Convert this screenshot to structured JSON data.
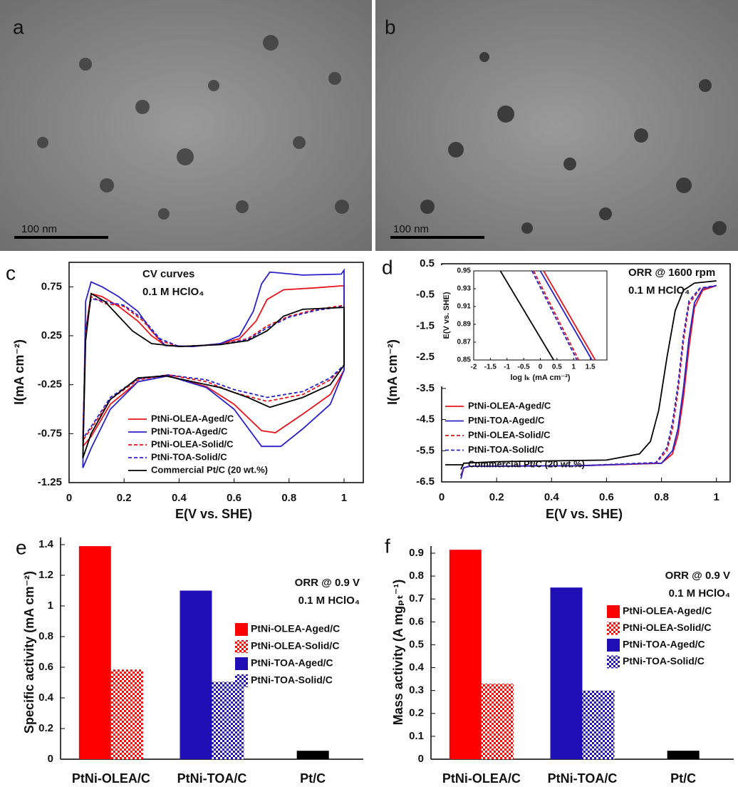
{
  "images": [
    {
      "panel": "a",
      "scale_bar": "100 nm"
    },
    {
      "panel": "b",
      "scale_bar": "100 nm"
    }
  ],
  "chart_data": [
    {
      "type": "line",
      "panel": "c",
      "xlabel": "E(V vs. SHE)",
      "ylabel": "I(mA cm⁻²)",
      "annotations": [
        "CV curves",
        "0.1 M HClO₄"
      ],
      "xlim": [
        0,
        1.07
      ],
      "ylim": [
        -1.25,
        1
      ],
      "xticks": [
        0,
        0.2,
        0.4,
        0.6,
        0.8,
        1
      ],
      "yticks": [
        0.75,
        0.25,
        -0.25,
        -0.75,
        -1.25
      ],
      "frame": true,
      "series": [
        {
          "name": "PtNi-OLEA-Aged/C",
          "color": "#e8141b",
          "dashed": false,
          "x": [
            0.05,
            0.06,
            0.08,
            0.12,
            0.18,
            0.25,
            0.3,
            0.35,
            0.45,
            0.55,
            0.62,
            0.68,
            0.72,
            0.78,
            0.9,
            0.99,
            1.0,
            1.0,
            0.95,
            0.85,
            0.75,
            0.7,
            0.6,
            0.5,
            0.36,
            0.25,
            0.15,
            0.08,
            0.05
          ],
          "values": [
            -0.88,
            0.3,
            0.68,
            0.65,
            0.55,
            0.4,
            0.25,
            0.15,
            0.14,
            0.17,
            0.22,
            0.4,
            0.62,
            0.72,
            0.74,
            0.76,
            0.76,
            -0.1,
            -0.35,
            -0.55,
            -0.74,
            -0.72,
            -0.45,
            -0.27,
            -0.16,
            -0.22,
            -0.45,
            -0.78,
            -0.88
          ]
        },
        {
          "name": "PtNi-TOA-Aged/C",
          "color": "#2a22c8",
          "dashed": false,
          "x": [
            0.05,
            0.06,
            0.08,
            0.12,
            0.18,
            0.25,
            0.3,
            0.35,
            0.45,
            0.55,
            0.62,
            0.67,
            0.7,
            0.73,
            0.85,
            0.99,
            1.0,
            1.0,
            0.95,
            0.85,
            0.77,
            0.7,
            0.6,
            0.5,
            0.36,
            0.25,
            0.15,
            0.08,
            0.05
          ],
          "values": [
            -1.1,
            0.6,
            0.8,
            0.75,
            0.65,
            0.5,
            0.3,
            0.15,
            0.14,
            0.17,
            0.25,
            0.5,
            0.78,
            0.9,
            0.87,
            0.88,
            0.92,
            -0.1,
            -0.45,
            -0.7,
            -0.88,
            -0.88,
            -0.5,
            -0.28,
            -0.16,
            -0.22,
            -0.5,
            -0.9,
            -1.1
          ]
        },
        {
          "name": "PtNi-OLEA-Solid/C",
          "color": "#e8141b",
          "dashed": true,
          "x": [
            0.05,
            0.06,
            0.08,
            0.13,
            0.2,
            0.27,
            0.33,
            0.4,
            0.55,
            0.65,
            0.72,
            0.8,
            0.9,
            1.0,
            1.0,
            0.95,
            0.85,
            0.72,
            0.6,
            0.5,
            0.36,
            0.25,
            0.15,
            0.08,
            0.05
          ],
          "values": [
            -0.82,
            0.3,
            0.65,
            0.58,
            0.55,
            0.4,
            0.2,
            0.14,
            0.16,
            0.22,
            0.35,
            0.45,
            0.52,
            0.56,
            -0.05,
            -0.2,
            -0.35,
            -0.42,
            -0.33,
            -0.22,
            -0.15,
            -0.2,
            -0.4,
            -0.7,
            -0.82
          ]
        },
        {
          "name": "PtNi-TOA-Solid/C",
          "color": "#2a22c8",
          "dashed": true,
          "x": [
            0.05,
            0.06,
            0.08,
            0.13,
            0.2,
            0.27,
            0.33,
            0.4,
            0.55,
            0.65,
            0.72,
            0.8,
            0.9,
            1.0,
            1.0,
            0.95,
            0.85,
            0.72,
            0.6,
            0.5,
            0.36,
            0.25,
            0.15,
            0.08,
            0.05
          ],
          "values": [
            -0.8,
            0.3,
            0.63,
            0.6,
            0.56,
            0.42,
            0.22,
            0.14,
            0.16,
            0.21,
            0.33,
            0.44,
            0.51,
            0.55,
            -0.05,
            -0.18,
            -0.32,
            -0.38,
            -0.3,
            -0.2,
            -0.15,
            -0.19,
            -0.38,
            -0.68,
            -0.8
          ]
        },
        {
          "name": "Commercial Pt/C (20 wt.%)",
          "color": "#000000",
          "dashed": false,
          "x": [
            0.05,
            0.06,
            0.08,
            0.1,
            0.13,
            0.18,
            0.23,
            0.3,
            0.4,
            0.55,
            0.65,
            0.72,
            0.78,
            0.85,
            1.0,
            1.0,
            0.95,
            0.85,
            0.73,
            0.65,
            0.55,
            0.45,
            0.35,
            0.25,
            0.15,
            0.08,
            0.05
          ],
          "values": [
            -1.0,
            0.2,
            0.68,
            0.65,
            0.6,
            0.45,
            0.3,
            0.17,
            0.14,
            0.16,
            0.2,
            0.3,
            0.45,
            0.52,
            0.54,
            -0.05,
            -0.25,
            -0.38,
            -0.48,
            -0.38,
            -0.28,
            -0.22,
            -0.16,
            -0.18,
            -0.4,
            -0.75,
            -1.0
          ]
        }
      ]
    },
    {
      "type": "line",
      "panel": "d",
      "xlabel": "E(V vs. SHE)",
      "ylabel": "I(mA cm⁻²)",
      "annotations": [
        "ORR @ 1600 rpm",
        "0.1 M HClO₄"
      ],
      "xlim": [
        0,
        1.05
      ],
      "ylim": [
        -6.5,
        0.5
      ],
      "xticks": [
        0,
        0.2,
        0.4,
        0.6,
        0.8,
        1
      ],
      "yticks": [
        0.5,
        -0.5,
        -1.5,
        -2.5,
        -3.5,
        -4.5,
        -5.5,
        -6.5
      ],
      "frame": true,
      "series": [
        {
          "name": "PtNi-OLEA-Aged/C",
          "color": "#e8141b",
          "dashed": false,
          "x": [
            0.07,
            0.08,
            0.1,
            0.5,
            0.8,
            0.84,
            0.86,
            0.88,
            0.9,
            0.92,
            0.95,
            1.0
          ],
          "values": [
            -6.3,
            -6.05,
            -6.0,
            -5.98,
            -5.9,
            -5.6,
            -5.0,
            -3.8,
            -2.2,
            -0.9,
            -0.35,
            -0.2
          ]
        },
        {
          "name": "PtNi-TOA-Aged/C",
          "color": "#2a22c8",
          "dashed": false,
          "x": [
            0.07,
            0.08,
            0.1,
            0.5,
            0.8,
            0.84,
            0.86,
            0.88,
            0.9,
            0.92,
            0.95,
            1.0
          ],
          "values": [
            -6.4,
            -6.05,
            -6.0,
            -5.98,
            -5.9,
            -5.5,
            -4.8,
            -3.5,
            -1.9,
            -0.75,
            -0.3,
            -0.2
          ]
        },
        {
          "name": "PtNi-OLEA-Solid/C",
          "color": "#e8141b",
          "dashed": true,
          "x": [
            0.07,
            0.08,
            0.1,
            0.5,
            0.78,
            0.82,
            0.84,
            0.86,
            0.88,
            0.9,
            0.94,
            1.0
          ],
          "values": [
            -6.3,
            -6.05,
            -6.0,
            -5.98,
            -5.9,
            -5.5,
            -4.8,
            -3.6,
            -2.0,
            -0.8,
            -0.3,
            -0.2
          ]
        },
        {
          "name": "PtNi-TOA-Solid/C",
          "color": "#2a22c8",
          "dashed": true,
          "x": [
            0.07,
            0.08,
            0.1,
            0.5,
            0.78,
            0.82,
            0.84,
            0.86,
            0.88,
            0.9,
            0.94,
            1.0
          ],
          "values": [
            -6.3,
            -6.05,
            -6.0,
            -5.98,
            -5.88,
            -5.4,
            -4.6,
            -3.4,
            -1.8,
            -0.7,
            -0.28,
            -0.2
          ]
        },
        {
          "name": "Commercial Pt/C (20 wt.%)",
          "color": "#000000",
          "dashed": false,
          "x": [
            0.07,
            0.08,
            0.2,
            0.6,
            0.72,
            0.76,
            0.79,
            0.82,
            0.85,
            0.88,
            0.92,
            1.0
          ],
          "values": [
            -6.1,
            -5.9,
            -5.85,
            -5.8,
            -5.6,
            -5.2,
            -4.2,
            -2.5,
            -1.0,
            -0.35,
            -0.12,
            -0.05
          ]
        }
      ],
      "inset": {
        "xlabel": "log Iₖ (mA cm⁻²)",
        "ylabel": "E(V vs. SHE)",
        "xlim": [
          -2,
          2
        ],
        "ylim": [
          0.85,
          0.95
        ],
        "xticks": [
          -2,
          -1.5,
          -1,
          -0.5,
          0,
          0.5,
          1,
          1.5
        ],
        "yticks": [
          0.95,
          0.93,
          0.91,
          0.89,
          0.87,
          0.85
        ],
        "frame": true,
        "series": [
          {
            "color": "#e8141b",
            "dashed": false,
            "x": [
              0.1,
              1.65
            ],
            "values": [
              0.95,
              0.85
            ]
          },
          {
            "color": "#2a22c8",
            "dashed": false,
            "x": [
              0.0,
              1.55
            ],
            "values": [
              0.95,
              0.85
            ]
          },
          {
            "color": "#e8141b",
            "dashed": true,
            "x": [
              -0.2,
              1.15
            ],
            "values": [
              0.95,
              0.85
            ]
          },
          {
            "color": "#2a22c8",
            "dashed": true,
            "x": [
              -0.25,
              1.1
            ],
            "values": [
              0.95,
              0.85
            ]
          },
          {
            "color": "#000000",
            "dashed": false,
            "x": [
              -1.2,
              0.4
            ],
            "values": [
              0.95,
              0.85
            ]
          }
        ]
      }
    },
    {
      "type": "bar",
      "panel": "e",
      "ylabel": "Specific activity (mA cm⁻²)",
      "annotations": [
        "ORR @ 0.9 V",
        "0.1 M HClO₄"
      ],
      "categories": [
        "PtNi-OLEA/C",
        "PtNi-TOA/C",
        "Pt/C"
      ],
      "ylim": [
        0,
        1.4
      ],
      "yticks": [
        0,
        0.2,
        0.4,
        0.6,
        0.8,
        1,
        1.2,
        1.4
      ],
      "frame": false,
      "series": [
        {
          "name": "PtNi-OLEA-Aged/C",
          "color": "#ff0000",
          "hatched": false,
          "values": [
            1.39,
            null,
            null
          ]
        },
        {
          "name": "PtNi-OLEA-Solid/C",
          "color": "#ff0000",
          "hatched": true,
          "values": [
            0.585,
            null,
            null
          ]
        },
        {
          "name": "PtNi-TOA-Aged/C",
          "color": "#1f0fb4",
          "hatched": false,
          "values": [
            null,
            1.1,
            null
          ]
        },
        {
          "name": "PtNi-TOA-Solid/C",
          "color": "#1f0fb4",
          "hatched": true,
          "values": [
            null,
            0.505,
            null
          ]
        },
        {
          "color": "#000000",
          "hatched": false,
          "values": [
            null,
            null,
            0.055
          ]
        }
      ]
    },
    {
      "type": "bar",
      "panel": "f",
      "ylabel": "Mass activity (A mgₚₜ⁻¹)",
      "annotations": [
        "ORR @ 0.9 V",
        "0.1 M HClO₄"
      ],
      "categories": [
        "PtNi-OLEA/C",
        "PtNi-TOA/C",
        "Pt/C"
      ],
      "ylim": [
        0,
        0.9
      ],
      "yticks": [
        0,
        0.1,
        0.2,
        0.3,
        0.4,
        0.5,
        0.6,
        0.7,
        0.8,
        0.9
      ],
      "frame": false,
      "series": [
        {
          "name": "PtNi-OLEA-Aged/C",
          "color": "#ff0000",
          "hatched": false,
          "values": [
            0.915,
            null,
            null
          ]
        },
        {
          "name": "PtNi-OLEA-Solid/C",
          "color": "#ff0000",
          "hatched": true,
          "values": [
            0.33,
            null,
            null
          ]
        },
        {
          "name": "PtNi-TOA-Aged/C",
          "color": "#1f0fb4",
          "hatched": false,
          "values": [
            null,
            0.75,
            null
          ]
        },
        {
          "name": "PtNi-TOA-Solid/C",
          "color": "#1f0fb4",
          "hatched": true,
          "values": [
            null,
            0.3,
            null
          ]
        },
        {
          "color": "#000000",
          "hatched": false,
          "values": [
            null,
            null,
            0.037
          ]
        }
      ]
    }
  ]
}
